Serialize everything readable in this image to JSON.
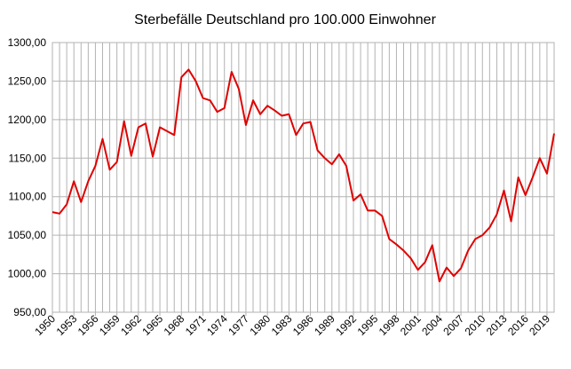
{
  "chart_data": {
    "type": "line",
    "title": "Sterbefälle Deutschland pro 100.000 Einwohner",
    "x": [
      1950,
      1951,
      1952,
      1953,
      1954,
      1955,
      1956,
      1957,
      1958,
      1959,
      1960,
      1961,
      1962,
      1963,
      1964,
      1965,
      1966,
      1967,
      1968,
      1969,
      1970,
      1971,
      1972,
      1973,
      1974,
      1975,
      1976,
      1977,
      1978,
      1979,
      1980,
      1981,
      1982,
      1983,
      1984,
      1985,
      1986,
      1987,
      1988,
      1989,
      1990,
      1991,
      1992,
      1993,
      1994,
      1995,
      1996,
      1997,
      1998,
      1999,
      2000,
      2001,
      2002,
      2003,
      2004,
      2005,
      2006,
      2007,
      2008,
      2009,
      2010,
      2011,
      2012,
      2013,
      2014,
      2015,
      2016,
      2017,
      2018,
      2019,
      2020
    ],
    "series": [
      {
        "name": "Sterbefälle",
        "color": "#e00000",
        "values": [
          1080,
          1078,
          1090,
          1120,
          1093,
          1120,
          1140,
          1175,
          1135,
          1145,
          1198,
          1153,
          1190,
          1195,
          1152,
          1190,
          1185,
          1180,
          1255,
          1265,
          1250,
          1228,
          1225,
          1210,
          1215,
          1262,
          1240,
          1193,
          1225,
          1207,
          1218,
          1212,
          1205,
          1207,
          1180,
          1195,
          1197,
          1160,
          1150,
          1142,
          1155,
          1140,
          1095,
          1103,
          1082,
          1082,
          1075,
          1045,
          1038,
          1030,
          1020,
          1005,
          1015,
          1037,
          990,
          1008,
          997,
          1007,
          1030,
          1045,
          1050,
          1060,
          1077,
          1108,
          1068,
          1125,
          1102,
          1125,
          1150,
          1130,
          1182
        ]
      }
    ],
    "xlim": [
      1950,
      2020
    ],
    "xticks": [
      1950,
      1953,
      1956,
      1959,
      1962,
      1965,
      1968,
      1971,
      1974,
      1977,
      1980,
      1983,
      1986,
      1989,
      1992,
      1995,
      1998,
      2001,
      2004,
      2007,
      2010,
      2013,
      2016,
      2019
    ],
    "ylim": [
      950,
      1300
    ],
    "yticks": [
      {
        "value": 950,
        "label": "950,00"
      },
      {
        "value": 1000,
        "label": "1000,00"
      },
      {
        "value": 1050,
        "label": "1050,00"
      },
      {
        "value": 1100,
        "label": "1100,00"
      },
      {
        "value": 1150,
        "label": "1150,00"
      },
      {
        "value": 1200,
        "label": "1200,00"
      },
      {
        "value": 1250,
        "label": "1250,00"
      },
      {
        "value": 1300,
        "label": "1300,00"
      }
    ],
    "grid": true
  }
}
